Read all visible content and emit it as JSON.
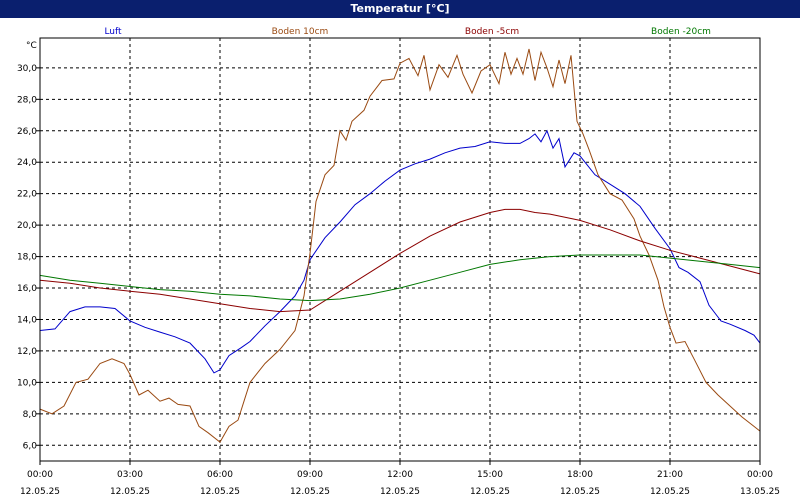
{
  "chart_data": {
    "type": "line",
    "title": "Temperatur [°C]",
    "ylabel": "°C",
    "ylim": [
      5.0,
      31.9
    ],
    "xlim": [
      "12.05.25 00:00",
      "13.05.25 00:00"
    ],
    "grid": true,
    "y_ticks": [
      "6,0",
      "8,0",
      "10,0",
      "12,0",
      "14,0",
      "16,0",
      "18,0",
      "20,0",
      "22,0",
      "24,0",
      "26,0",
      "28,0",
      "30,0"
    ],
    "x_ticks": [
      {
        "time": "00:00",
        "date": "12.05.25"
      },
      {
        "time": "03:00",
        "date": "12.05.25"
      },
      {
        "time": "06:00",
        "date": "12.05.25"
      },
      {
        "time": "09:00",
        "date": "12.05.25"
      },
      {
        "time": "12:00",
        "date": "12.05.25"
      },
      {
        "time": "15:00",
        "date": "12.05.25"
      },
      {
        "time": "18:00",
        "date": "12.05.25"
      },
      {
        "time": "21:00",
        "date": "12.05.25"
      },
      {
        "time": "00:00",
        "date": "13.05.25"
      }
    ],
    "x_unit": "hours",
    "series": [
      {
        "name": "Luft",
        "color": "#0000cc",
        "points": [
          [
            0,
            13.3
          ],
          [
            0.5,
            13.4
          ],
          [
            1,
            14.5
          ],
          [
            1.5,
            14.8
          ],
          [
            2,
            14.8
          ],
          [
            2.5,
            14.7
          ],
          [
            3,
            13.9
          ],
          [
            3.5,
            13.5
          ],
          [
            4,
            13.2
          ],
          [
            4.5,
            12.9
          ],
          [
            5,
            12.5
          ],
          [
            5.5,
            11.5
          ],
          [
            5.8,
            10.6
          ],
          [
            6,
            10.8
          ],
          [
            6.3,
            11.7
          ],
          [
            6.7,
            12.2
          ],
          [
            7,
            12.6
          ],
          [
            7.5,
            13.6
          ],
          [
            8,
            14.5
          ],
          [
            8.5,
            15.5
          ],
          [
            8.8,
            16.5
          ],
          [
            9,
            17.8
          ],
          [
            9.5,
            19.2
          ],
          [
            10,
            20.2
          ],
          [
            10.5,
            21.3
          ],
          [
            11,
            22.0
          ],
          [
            11.5,
            22.8
          ],
          [
            12,
            23.5
          ],
          [
            12.5,
            23.9
          ],
          [
            13,
            24.2
          ],
          [
            13.5,
            24.6
          ],
          [
            14,
            24.9
          ],
          [
            14.5,
            25.0
          ],
          [
            15,
            25.3
          ],
          [
            15.5,
            25.2
          ],
          [
            16,
            25.2
          ],
          [
            16.3,
            25.5
          ],
          [
            16.5,
            25.8
          ],
          [
            16.7,
            25.3
          ],
          [
            16.9,
            26.0
          ],
          [
            17.1,
            24.9
          ],
          [
            17.3,
            25.5
          ],
          [
            17.5,
            23.7
          ],
          [
            17.8,
            24.6
          ],
          [
            18,
            24.4
          ],
          [
            18.5,
            23.2
          ],
          [
            19,
            22.6
          ],
          [
            19.5,
            22.0
          ],
          [
            20,
            21.2
          ],
          [
            20.5,
            19.8
          ],
          [
            21,
            18.5
          ],
          [
            21.3,
            17.3
          ],
          [
            21.6,
            17.0
          ],
          [
            22,
            16.4
          ],
          [
            22.3,
            14.9
          ],
          [
            22.7,
            13.9
          ],
          [
            23,
            13.7
          ],
          [
            23.5,
            13.3
          ],
          [
            23.8,
            13.0
          ],
          [
            24,
            12.5
          ]
        ]
      },
      {
        "name": "Boden 10cm",
        "color": "#9a4a12",
        "points": [
          [
            0,
            8.3
          ],
          [
            0.4,
            8.0
          ],
          [
            0.8,
            8.5
          ],
          [
            1.2,
            10.0
          ],
          [
            1.6,
            10.2
          ],
          [
            2,
            11.2
          ],
          [
            2.4,
            11.5
          ],
          [
            2.8,
            11.2
          ],
          [
            3,
            10.5
          ],
          [
            3.3,
            9.2
          ],
          [
            3.6,
            9.5
          ],
          [
            4,
            8.8
          ],
          [
            4.3,
            9.0
          ],
          [
            4.6,
            8.6
          ],
          [
            5,
            8.5
          ],
          [
            5.3,
            7.2
          ],
          [
            5.6,
            6.8
          ],
          [
            6,
            6.2
          ],
          [
            6.3,
            7.2
          ],
          [
            6.6,
            7.6
          ],
          [
            6.8,
            8.8
          ],
          [
            7,
            10.0
          ],
          [
            7.5,
            11.2
          ],
          [
            8,
            12.1
          ],
          [
            8.5,
            13.3
          ],
          [
            8.8,
            15.5
          ],
          [
            9,
            18.2
          ],
          [
            9.2,
            21.5
          ],
          [
            9.5,
            23.2
          ],
          [
            9.8,
            23.8
          ],
          [
            10,
            26.0
          ],
          [
            10.2,
            25.4
          ],
          [
            10.4,
            26.6
          ],
          [
            10.8,
            27.3
          ],
          [
            11,
            28.2
          ],
          [
            11.4,
            29.2
          ],
          [
            11.8,
            29.3
          ],
          [
            12,
            30.3
          ],
          [
            12.3,
            30.6
          ],
          [
            12.6,
            29.5
          ],
          [
            12.8,
            30.8
          ],
          [
            13,
            28.6
          ],
          [
            13.3,
            30.2
          ],
          [
            13.6,
            29.4
          ],
          [
            13.9,
            30.8
          ],
          [
            14.1,
            29.6
          ],
          [
            14.4,
            28.4
          ],
          [
            14.7,
            29.8
          ],
          [
            15,
            30.2
          ],
          [
            15.3,
            29.0
          ],
          [
            15.5,
            31.0
          ],
          [
            15.7,
            29.6
          ],
          [
            15.9,
            30.6
          ],
          [
            16.1,
            29.6
          ],
          [
            16.3,
            31.2
          ],
          [
            16.5,
            29.2
          ],
          [
            16.7,
            31.0
          ],
          [
            16.9,
            30.0
          ],
          [
            17.1,
            28.8
          ],
          [
            17.3,
            30.5
          ],
          [
            17.5,
            29.0
          ],
          [
            17.7,
            30.8
          ],
          [
            17.9,
            26.6
          ],
          [
            18.1,
            25.8
          ],
          [
            18.3,
            24.8
          ],
          [
            18.6,
            23.2
          ],
          [
            19,
            22.0
          ],
          [
            19.4,
            21.6
          ],
          [
            19.8,
            20.4
          ],
          [
            20,
            19.3
          ],
          [
            20.3,
            18.1
          ],
          [
            20.6,
            16.5
          ],
          [
            20.8,
            14.8
          ],
          [
            21,
            13.5
          ],
          [
            21.2,
            12.5
          ],
          [
            21.5,
            12.6
          ],
          [
            21.8,
            11.5
          ],
          [
            22.2,
            10.0
          ],
          [
            22.6,
            9.2
          ],
          [
            23,
            8.5
          ],
          [
            23.4,
            7.8
          ],
          [
            23.8,
            7.2
          ],
          [
            24,
            6.9
          ]
        ]
      },
      {
        "name": "Boden -5cm",
        "color": "#8b0000",
        "points": [
          [
            0,
            16.5
          ],
          [
            1,
            16.3
          ],
          [
            2,
            16.0
          ],
          [
            3,
            15.8
          ],
          [
            4,
            15.6
          ],
          [
            5,
            15.3
          ],
          [
            6,
            15.0
          ],
          [
            7,
            14.7
          ],
          [
            8,
            14.5
          ],
          [
            9,
            14.6
          ],
          [
            10,
            15.8
          ],
          [
            11,
            17.0
          ],
          [
            12,
            18.2
          ],
          [
            13,
            19.3
          ],
          [
            14,
            20.2
          ],
          [
            15,
            20.8
          ],
          [
            15.5,
            21.0
          ],
          [
            16,
            21.0
          ],
          [
            16.5,
            20.8
          ],
          [
            17,
            20.7
          ],
          [
            18,
            20.3
          ],
          [
            19,
            19.7
          ],
          [
            20,
            19.0
          ],
          [
            21,
            18.4
          ],
          [
            22,
            17.9
          ],
          [
            23,
            17.4
          ],
          [
            24,
            16.9
          ]
        ]
      },
      {
        "name": "Boden -20cm",
        "color": "#007700",
        "points": [
          [
            0,
            16.8
          ],
          [
            1,
            16.5
          ],
          [
            2,
            16.3
          ],
          [
            3,
            16.1
          ],
          [
            4,
            15.9
          ],
          [
            5,
            15.8
          ],
          [
            6,
            15.6
          ],
          [
            7,
            15.5
          ],
          [
            8,
            15.3
          ],
          [
            9,
            15.2
          ],
          [
            10,
            15.3
          ],
          [
            11,
            15.6
          ],
          [
            12,
            16.0
          ],
          [
            13,
            16.5
          ],
          [
            14,
            17.0
          ],
          [
            15,
            17.5
          ],
          [
            16,
            17.8
          ],
          [
            17,
            18.0
          ],
          [
            18,
            18.1
          ],
          [
            19,
            18.1
          ],
          [
            20,
            18.1
          ],
          [
            21,
            17.9
          ],
          [
            22,
            17.7
          ],
          [
            23,
            17.5
          ],
          [
            24,
            17.3
          ]
        ]
      }
    ]
  }
}
